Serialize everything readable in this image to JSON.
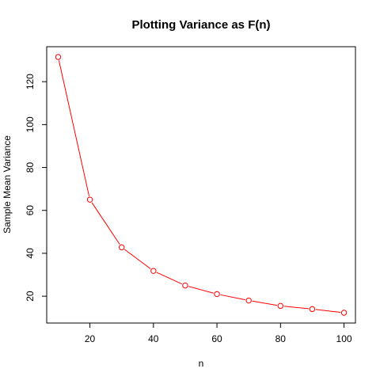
{
  "chart_data": {
    "type": "line",
    "title": "Plotting Variance as F(n)",
    "xlabel": "n",
    "ylabel": "Sample Mean Variance",
    "x": [
      10,
      20,
      30,
      40,
      50,
      60,
      70,
      80,
      90,
      100
    ],
    "series": [
      {
        "values": [
          131.5,
          65.0,
          42.8,
          31.8,
          25.0,
          21.0,
          18.0,
          15.5,
          14.0,
          12.3
        ],
        "color": "#ff0000",
        "marker": "open-circle"
      }
    ],
    "xlim": [
      6.4,
      103.6
    ],
    "ylim": [
      7.5,
      136.3
    ],
    "xticks": [
      20,
      40,
      60,
      80,
      100
    ],
    "yticks": [
      20,
      40,
      60,
      80,
      100,
      120
    ],
    "xtick_labels": [
      "20",
      "40",
      "60",
      "80",
      "100"
    ],
    "ytick_labels": [
      "20",
      "40",
      "60",
      "80",
      "100",
      "120"
    ],
    "grid": false,
    "legend": "none"
  }
}
